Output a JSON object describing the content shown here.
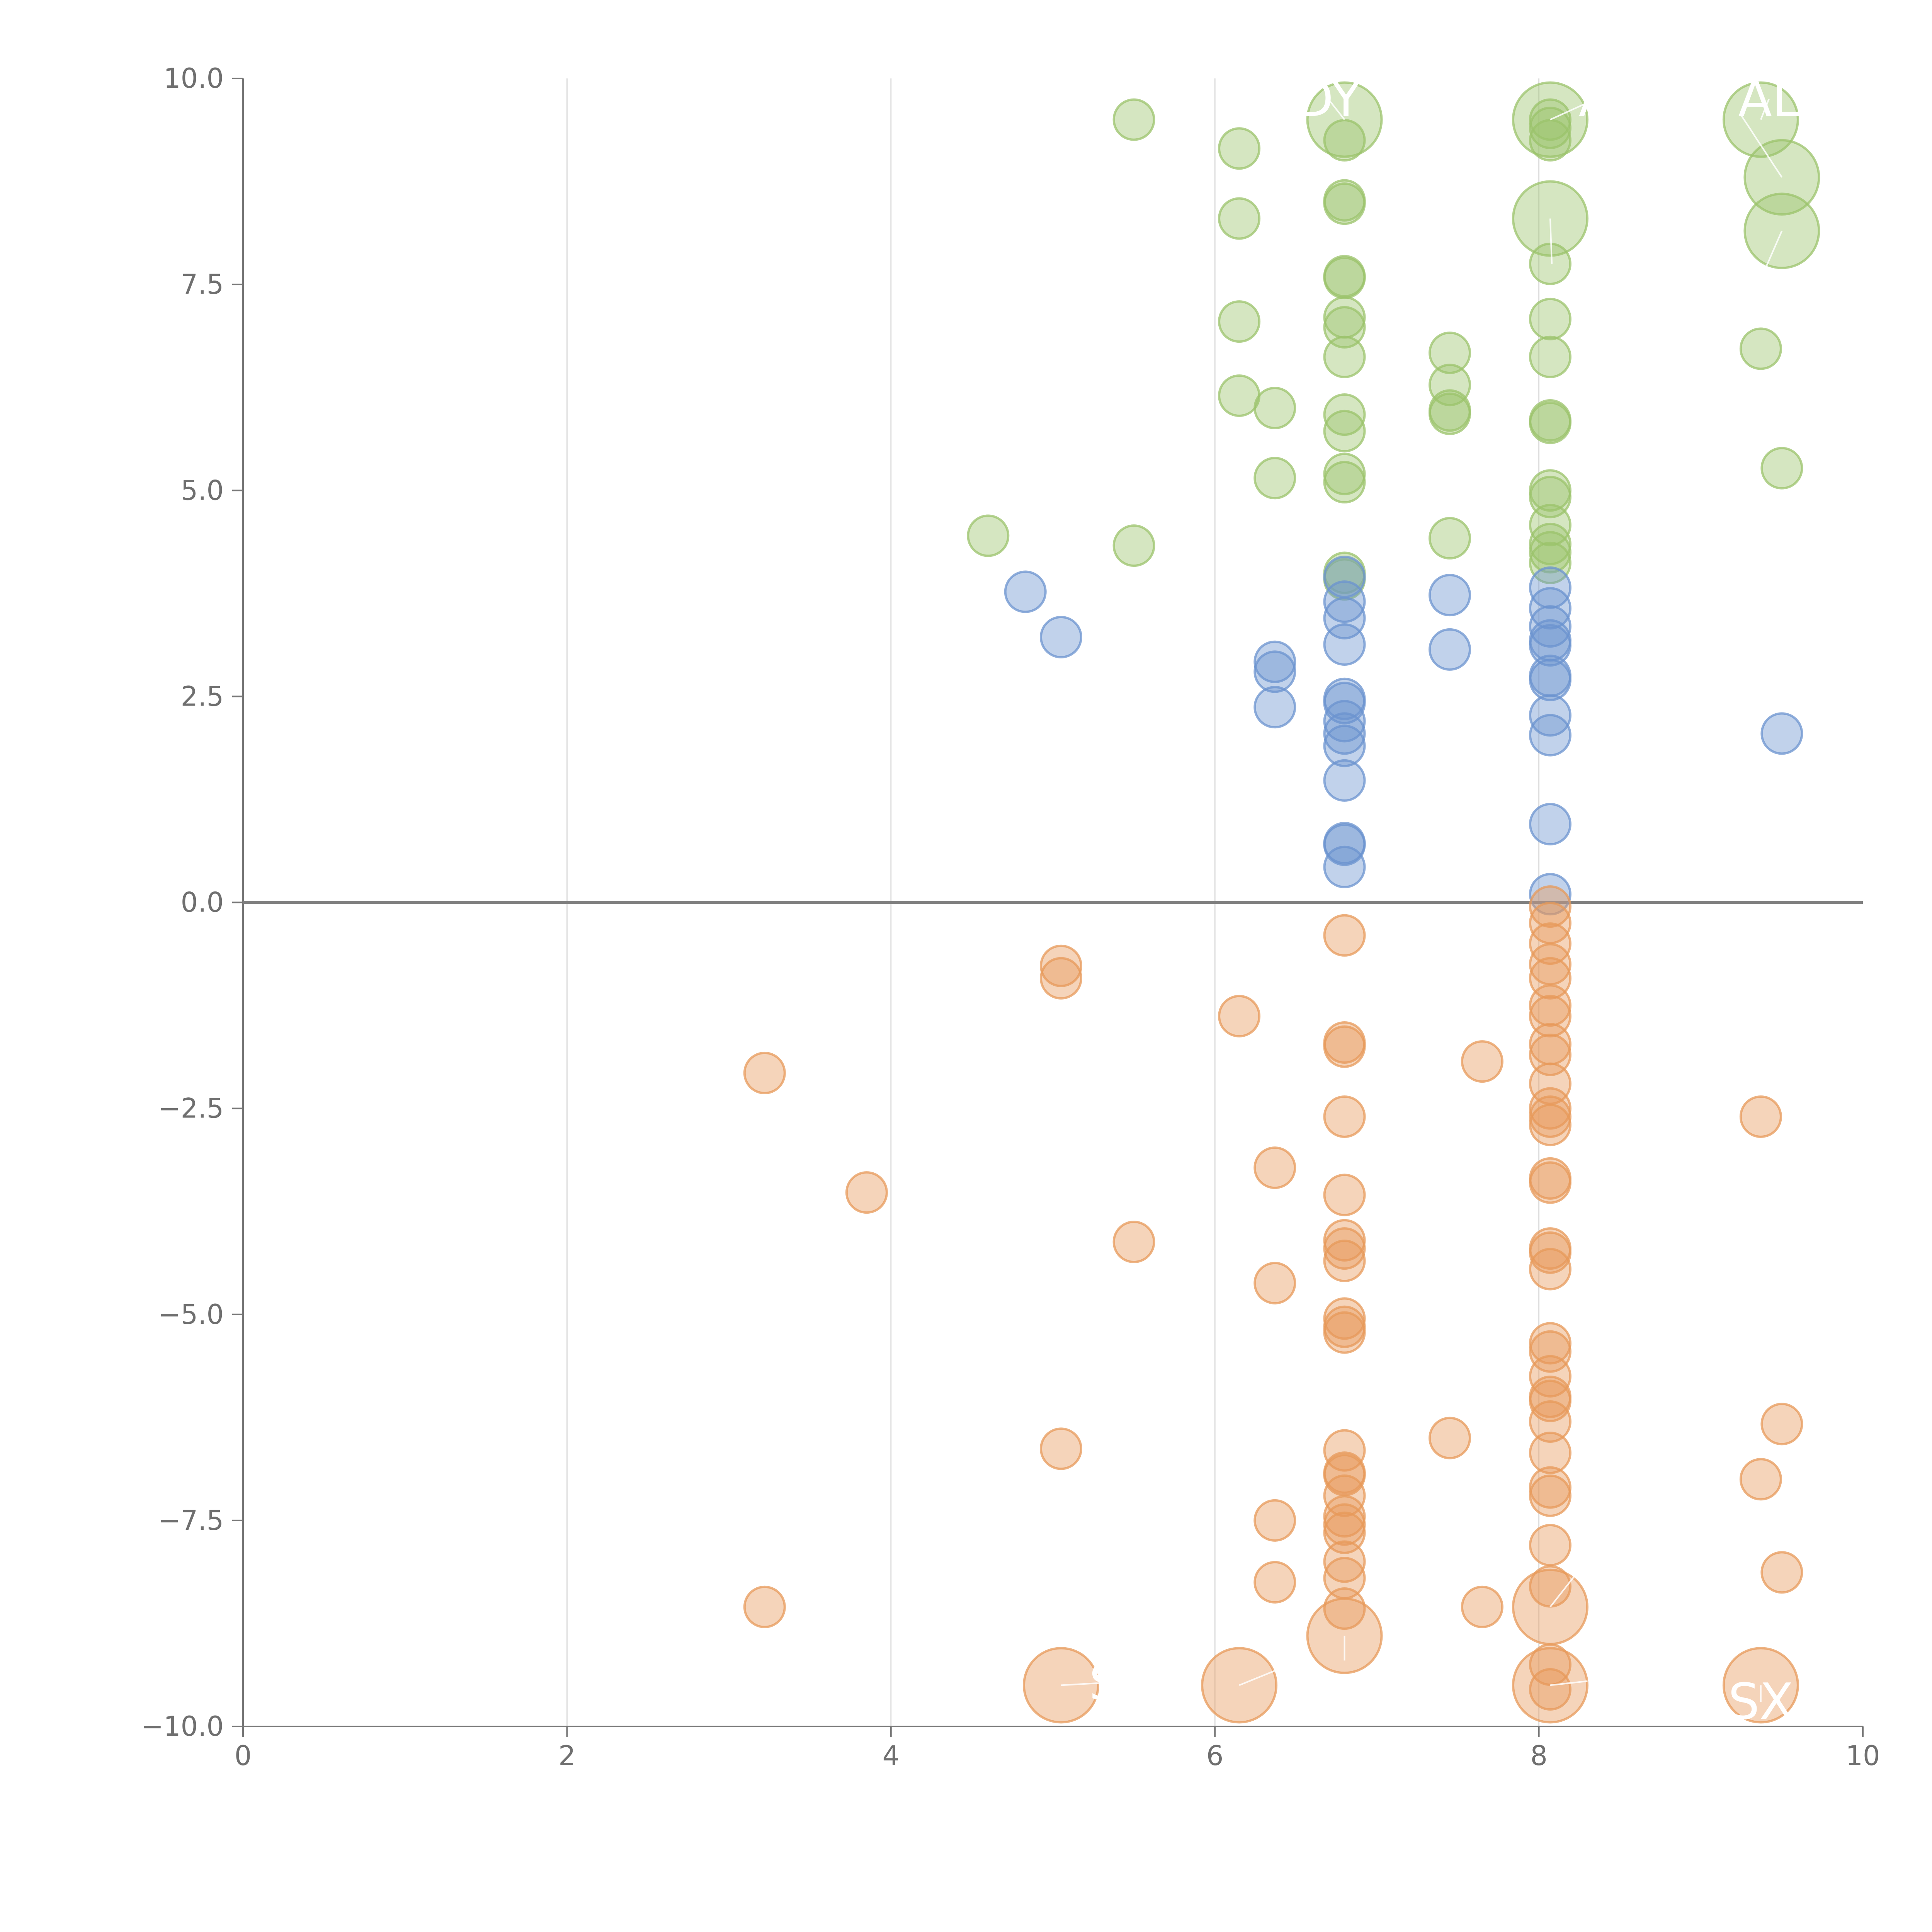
{
  "chart_data": {
    "type": "scatter",
    "title": "",
    "xlabel": "",
    "ylabel": "",
    "xlim": [
      0,
      10
    ],
    "ylim": [
      -10,
      10
    ],
    "x_ticks": [
      "0",
      "2",
      "4",
      "6",
      "8",
      "10"
    ],
    "y_ticks": [
      "10.0",
      "7.5",
      "5.0",
      "2.5",
      "0.0",
      "−2.5",
      "−5.0",
      "−7.5",
      "−10.0"
    ],
    "grid": "vertical",
    "reference_line_y": 0,
    "colors": {
      "green": "#9bc36b",
      "blue": "#6b93cf",
      "orange": "#e7995a"
    },
    "series": [
      {
        "name": "green",
        "color": "#9bc36b",
        "points": [
          [
            5.5,
            9.5
          ],
          [
            6.15,
            9.15
          ],
          [
            6.15,
            8.3
          ],
          [
            6.15,
            7.05
          ],
          [
            6.15,
            6.15
          ],
          [
            6.37,
            6.0
          ],
          [
            6.37,
            5.15
          ],
          [
            4.6,
            4.45
          ],
          [
            5.5,
            4.33
          ],
          [
            6.8,
            9.25
          ],
          [
            6.8,
            8.52
          ],
          [
            6.8,
            8.48
          ],
          [
            6.8,
            7.6
          ],
          [
            6.8,
            7.58
          ],
          [
            6.8,
            7.1
          ],
          [
            6.8,
            6.98
          ],
          [
            6.8,
            6.62
          ],
          [
            6.8,
            5.92
          ],
          [
            6.8,
            5.72
          ],
          [
            6.8,
            5.2
          ],
          [
            6.8,
            5.1
          ],
          [
            6.8,
            4.0
          ],
          [
            6.8,
            3.92
          ],
          [
            7.45,
            6.67
          ],
          [
            7.45,
            6.28
          ],
          [
            7.45,
            5.97
          ],
          [
            7.45,
            5.93
          ],
          [
            7.45,
            4.42
          ],
          [
            8.07,
            9.5
          ],
          [
            8.07,
            9.4
          ],
          [
            8.07,
            9.25
          ],
          [
            8.07,
            7.75
          ],
          [
            8.07,
            7.08
          ],
          [
            8.07,
            6.62
          ],
          [
            8.07,
            5.85
          ],
          [
            8.07,
            5.82
          ],
          [
            8.07,
            5.0
          ],
          [
            8.07,
            4.92
          ],
          [
            8.07,
            4.58
          ],
          [
            8.07,
            4.35
          ],
          [
            8.07,
            4.25
          ],
          [
            8.07,
            4.12
          ],
          [
            9.37,
            6.72
          ],
          [
            9.5,
            5.27
          ]
        ]
      },
      {
        "name": "blue",
        "color": "#6b93cf",
        "points": [
          [
            4.83,
            3.77
          ],
          [
            5.05,
            3.22
          ],
          [
            6.37,
            2.92
          ],
          [
            6.37,
            2.8
          ],
          [
            6.37,
            2.37
          ],
          [
            6.8,
            3.95
          ],
          [
            6.8,
            3.65
          ],
          [
            6.8,
            3.45
          ],
          [
            6.8,
            3.13
          ],
          [
            6.8,
            2.47
          ],
          [
            6.8,
            2.42
          ],
          [
            6.8,
            2.2
          ],
          [
            6.8,
            2.05
          ],
          [
            6.8,
            1.9
          ],
          [
            6.8,
            1.48
          ],
          [
            6.8,
            0.72
          ],
          [
            6.8,
            0.7
          ],
          [
            6.8,
            0.43
          ],
          [
            7.45,
            3.73
          ],
          [
            7.45,
            3.07
          ],
          [
            8.07,
            3.82
          ],
          [
            8.07,
            3.57
          ],
          [
            8.07,
            3.35
          ],
          [
            8.07,
            3.18
          ],
          [
            8.07,
            3.12
          ],
          [
            8.07,
            2.75
          ],
          [
            8.07,
            2.7
          ],
          [
            8.07,
            2.27
          ],
          [
            8.07,
            2.03
          ],
          [
            8.07,
            0.95
          ],
          [
            8.07,
            0.1
          ],
          [
            9.5,
            2.05
          ]
        ]
      },
      {
        "name": "orange",
        "color": "#e7995a",
        "points": [
          [
            3.22,
            -2.07
          ],
          [
            3.85,
            -3.52
          ],
          [
            3.22,
            -8.55
          ],
          [
            5.05,
            -0.77
          ],
          [
            5.05,
            -0.92
          ],
          [
            5.5,
            -4.12
          ],
          [
            5.05,
            -6.63
          ],
          [
            6.15,
            -1.38
          ],
          [
            6.37,
            -3.22
          ],
          [
            6.37,
            -4.62
          ],
          [
            6.37,
            -7.5
          ],
          [
            6.37,
            -8.25
          ],
          [
            6.8,
            -0.4
          ],
          [
            6.8,
            -1.7
          ],
          [
            6.8,
            -1.75
          ],
          [
            6.8,
            -2.6
          ],
          [
            6.8,
            -3.55
          ],
          [
            6.8,
            -4.1
          ],
          [
            6.8,
            -4.2
          ],
          [
            6.8,
            -4.35
          ],
          [
            6.8,
            -5.05
          ],
          [
            6.8,
            -5.15
          ],
          [
            6.8,
            -5.22
          ],
          [
            6.8,
            -6.65
          ],
          [
            6.8,
            -6.92
          ],
          [
            6.8,
            -6.95
          ],
          [
            6.8,
            -7.2
          ],
          [
            6.8,
            -7.45
          ],
          [
            6.8,
            -7.55
          ],
          [
            6.8,
            -7.65
          ],
          [
            6.8,
            -8.0
          ],
          [
            6.8,
            -8.2
          ],
          [
            6.8,
            -8.57
          ],
          [
            7.45,
            -6.5
          ],
          [
            7.65,
            -1.93
          ],
          [
            7.65,
            -8.55
          ],
          [
            8.07,
            -0.05
          ],
          [
            8.07,
            -0.25
          ],
          [
            8.07,
            -0.5
          ],
          [
            8.07,
            -0.75
          ],
          [
            8.07,
            -0.92
          ],
          [
            8.07,
            -1.25
          ],
          [
            8.07,
            -1.38
          ],
          [
            8.07,
            -1.72
          ],
          [
            8.07,
            -1.85
          ],
          [
            8.07,
            -2.2
          ],
          [
            8.07,
            -2.5
          ],
          [
            8.07,
            -2.6
          ],
          [
            8.07,
            -2.7
          ],
          [
            8.07,
            -3.35
          ],
          [
            8.07,
            -3.4
          ],
          [
            8.07,
            -4.2
          ],
          [
            8.07,
            -4.25
          ],
          [
            8.07,
            -4.45
          ],
          [
            8.07,
            -5.35
          ],
          [
            8.07,
            -5.45
          ],
          [
            8.07,
            -5.75
          ],
          [
            8.07,
            -6.0
          ],
          [
            8.07,
            -6.05
          ],
          [
            8.07,
            -6.3
          ],
          [
            8.07,
            -6.68
          ],
          [
            8.07,
            -7.1
          ],
          [
            8.07,
            -7.2
          ],
          [
            8.07,
            -7.8
          ],
          [
            8.07,
            -8.3
          ],
          [
            8.07,
            -9.25
          ],
          [
            8.07,
            -9.55
          ],
          [
            9.37,
            -2.6
          ],
          [
            9.37,
            -7.0
          ],
          [
            9.5,
            -6.33
          ],
          [
            9.5,
            -8.13
          ]
        ]
      }
    ],
    "highlighted": [
      {
        "series": "green",
        "x": 6.8,
        "y": 9.5,
        "label": "DY",
        "label_x": 6.7,
        "label_y": 9.75
      },
      {
        "series": "green",
        "x": 8.07,
        "y": 9.5,
        "label": "A",
        "label_x": 8.35,
        "label_y": 9.75
      },
      {
        "series": "green",
        "x": 9.37,
        "y": 9.5,
        "label": "AL",
        "label_x": 9.42,
        "label_y": 9.75
      },
      {
        "series": "green",
        "x": 9.5,
        "y": 8.8,
        "label": "",
        "label_x": 9.25,
        "label_y": 9.55
      },
      {
        "series": "green",
        "x": 8.07,
        "y": 8.3,
        "label": "",
        "label_x": 8.08,
        "label_y": 7.75
      },
      {
        "series": "green",
        "x": 9.5,
        "y": 8.15,
        "label": "",
        "label_x": 9.4,
        "label_y": 7.7
      },
      {
        "series": "orange",
        "x": 5.05,
        "y": -9.5,
        "label": "S",
        "label_x": 5.32,
        "label_y": -9.47
      },
      {
        "series": "orange",
        "x": 6.15,
        "y": -9.5,
        "label": "",
        "label_x": 6.4,
        "label_y": -9.3
      },
      {
        "series": "orange",
        "x": 8.07,
        "y": -8.55,
        "label": "",
        "label_x": 8.25,
        "label_y": -8.1
      },
      {
        "series": "orange",
        "x": 8.07,
        "y": -9.5,
        "label": "",
        "label_x": 8.3,
        "label_y": -9.45
      },
      {
        "series": "orange",
        "x": 9.37,
        "y": -9.5,
        "label": "SX",
        "label_x": 9.37,
        "label_y": -9.7
      },
      {
        "series": "orange",
        "x": 6.8,
        "y": -8.9,
        "label": "",
        "label_x": 6.8,
        "label_y": -9.2
      }
    ]
  }
}
